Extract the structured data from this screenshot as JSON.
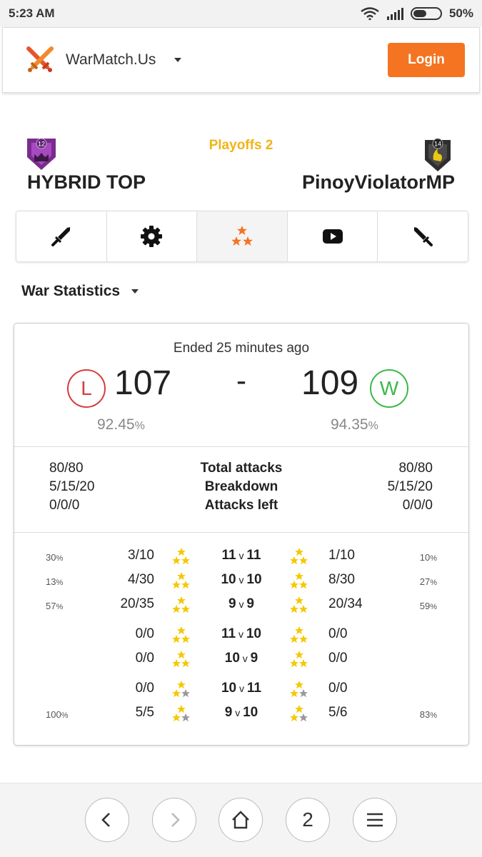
{
  "status_bar": {
    "time": "5:23 AM",
    "battery": "50%",
    "battery_level": 0.5
  },
  "header": {
    "brand": "WarMatch.Us",
    "login_label": "Login"
  },
  "match": {
    "round": "Playoffs 2",
    "left_clan": {
      "name": "HYBRID TOP",
      "level": "12"
    },
    "right_clan": {
      "name": "PinoyViolatorMP",
      "level": "14"
    }
  },
  "tabs": [
    {
      "name": "tab-attacks",
      "icon": "sword-icon"
    },
    {
      "name": "tab-settings",
      "icon": "gear-icon"
    },
    {
      "name": "tab-stars",
      "icon": "stars-icon",
      "active": true
    },
    {
      "name": "tab-video",
      "icon": "youtube-icon"
    },
    {
      "name": "tab-defense",
      "icon": "sword-icon"
    }
  ],
  "section": {
    "label": "War Statistics"
  },
  "war": {
    "ended": "Ended 25 minutes ago",
    "left": {
      "result": "L",
      "score": "107",
      "percent": "92.45",
      "percent_sign": "%"
    },
    "right": {
      "result": "W",
      "score": "109",
      "percent": "94.35",
      "percent_sign": "%"
    },
    "dash": "-"
  },
  "summary": [
    {
      "left": "80/80",
      "label": "Total attacks",
      "right": "80/80"
    },
    {
      "left": "5/15/20",
      "label": "Breakdown",
      "right": "5/15/20"
    },
    {
      "left": "0/0/0",
      "label": "Attacks left",
      "right": "0/0/0"
    }
  ],
  "breakdown": [
    {
      "lp": "30",
      "lf": "3/10",
      "ls": 3,
      "a": "11",
      "b": "11",
      "rs": 3,
      "rf": "1/10",
      "rp": "10"
    },
    {
      "lp": "13",
      "lf": "4/30",
      "ls": 3,
      "a": "10",
      "b": "10",
      "rs": 3,
      "rf": "8/30",
      "rp": "27"
    },
    {
      "lp": "57",
      "lf": "20/35",
      "ls": 3,
      "a": "9",
      "b": "9",
      "rs": 3,
      "rf": "20/34",
      "rp": "59"
    },
    {
      "lp": "",
      "lf": "0/0",
      "ls": 3,
      "a": "11",
      "b": "10",
      "rs": 3,
      "rf": "0/0",
      "rp": ""
    },
    {
      "lp": "",
      "lf": "0/0",
      "ls": 3,
      "a": "10",
      "b": "9",
      "rs": 3,
      "rf": "0/0",
      "rp": ""
    },
    {
      "lp": "",
      "lf": "0/0",
      "ls": 2,
      "a": "10",
      "b": "11",
      "rs": 2,
      "rf": "0/0",
      "rp": ""
    },
    {
      "lp": "100",
      "lf": "5/5",
      "ls": 2,
      "a": "9",
      "b": "10",
      "rs": 2,
      "rf": "5/6",
      "rp": "83"
    }
  ],
  "breakdown_v": "v",
  "breakdown_pct_sign": "%",
  "bottom_nav": {
    "back": "‹",
    "forward": "›",
    "tabs_count": "2"
  },
  "colors": {
    "accent": "#f47421",
    "round": "#f0b416",
    "loss": "#d63c3c",
    "win": "#3cb84a",
    "star": "#f5c800",
    "star_off": "#999999"
  }
}
